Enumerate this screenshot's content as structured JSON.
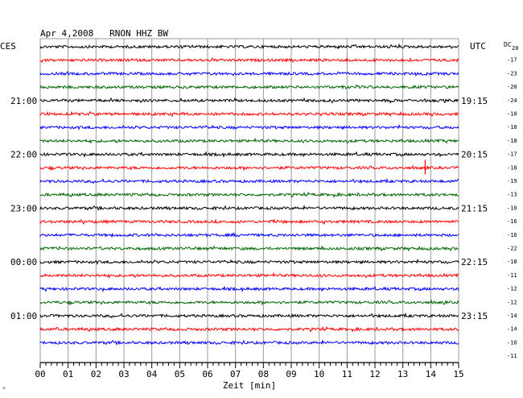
{
  "chart_data": {
    "type": "line",
    "title": "Apr 4,2008   RNON HHZ BW",
    "left_timezone": "CES",
    "right_timezone": "UTC",
    "offset_header": "DC",
    "offset_header_sub": "20",
    "xlabel": "Zeit [min]",
    "xlim": [
      0,
      15
    ],
    "x_ticks": [
      "00",
      "01",
      "02",
      "03",
      "04",
      "05",
      "06",
      "07",
      "08",
      "09",
      "10",
      "11",
      "12",
      "13",
      "14",
      "15"
    ],
    "left_hour_labels": [
      {
        "row": 4,
        "label": "21:00"
      },
      {
        "row": 8,
        "label": "22:00"
      },
      {
        "row": 12,
        "label": "23:00"
      },
      {
        "row": 16,
        "label": "00:00"
      },
      {
        "row": 20,
        "label": "01:00"
      }
    ],
    "right_hour_labels": [
      {
        "row": 4,
        "label": "19:15"
      },
      {
        "row": 8,
        "label": "20:15"
      },
      {
        "row": 12,
        "label": "21:15"
      },
      {
        "row": 16,
        "label": "22:15"
      },
      {
        "row": 20,
        "label": "23:15"
      }
    ],
    "trace_colors": [
      "#000000",
      "#ff0000",
      "#0000ff",
      "#006600"
    ],
    "dc_offsets": [
      "-17",
      "-23",
      "-20",
      "-24",
      "-18",
      "-18",
      "-18",
      "-17",
      "-18",
      "-19",
      "-13",
      "-10",
      "-16",
      "-16",
      "-22",
      "-18",
      "-11",
      "-12",
      "-12",
      "-14",
      "-14",
      "-10",
      "-11"
    ],
    "event": {
      "row": 9,
      "minute": 13.8,
      "color": "#ff0000"
    },
    "footer_mark": "^"
  }
}
